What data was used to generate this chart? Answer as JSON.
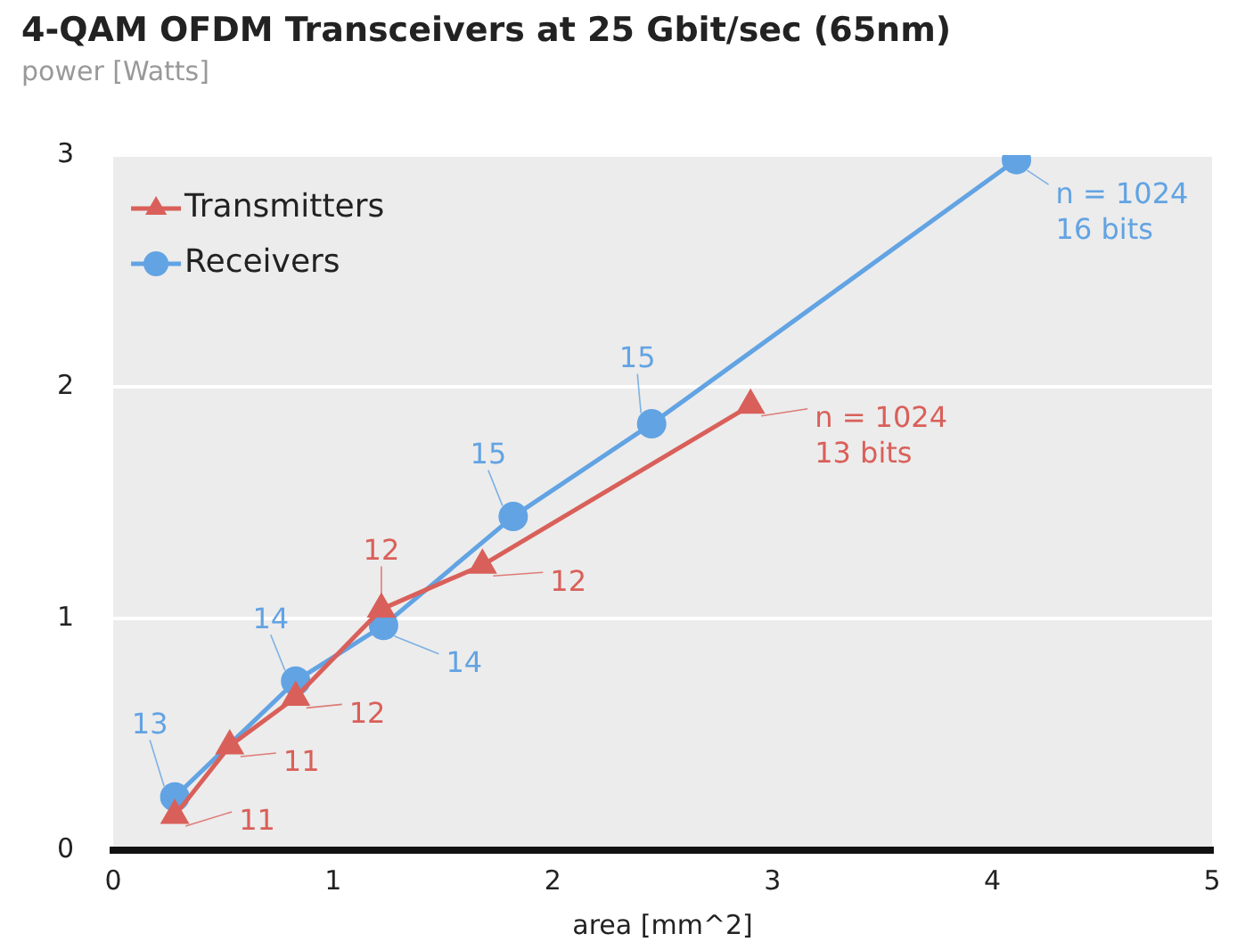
{
  "chart_data": {
    "type": "line",
    "title": "4-QAM OFDM Transceivers at 25 Gbit/sec (65nm)",
    "ylabel": "power [Watts]",
    "xlabel": "area [mm^2]",
    "xlim": [
      0,
      5
    ],
    "xticks": [
      0,
      1,
      2,
      3,
      4,
      5
    ],
    "ylim": [
      0,
      3
    ],
    "yticks": [
      0,
      1,
      2,
      3
    ],
    "grid": "y",
    "legend": "top left",
    "series": [
      {
        "name": "Transmitters",
        "color": "#d9605a",
        "marker": "triangle",
        "x": [
          0.28,
          0.53,
          0.83,
          1.22,
          1.68,
          2.9
        ],
        "values": [
          0.15,
          0.45,
          0.66,
          1.04,
          1.23,
          1.92
        ]
      },
      {
        "name": "Receivers",
        "color": "#62a3e3",
        "marker": "circle",
        "x": [
          0.28,
          0.83,
          1.23,
          1.82,
          2.45,
          4.11
        ],
        "values": [
          0.23,
          0.73,
          0.97,
          1.44,
          1.84,
          2.98
        ]
      }
    ],
    "annotations": [
      {
        "text": "11",
        "x": 0.28,
        "y": 0.15
      },
      {
        "text": "11",
        "x": 0.53,
        "y": 0.45
      },
      {
        "text": "12",
        "x": 0.83,
        "y": 0.66
      },
      {
        "text": "12",
        "x": 1.22,
        "y": 1.04
      },
      {
        "text": "12",
        "x": 1.68,
        "y": 1.23
      },
      {
        "text": "n = 1024\n13 bits",
        "x": 2.9,
        "y": 1.92
      },
      {
        "text": "13",
        "x": 0.28,
        "y": 0.23
      },
      {
        "text": "14",
        "x": 0.83,
        "y": 0.73
      },
      {
        "text": "14",
        "x": 1.23,
        "y": 0.97
      },
      {
        "text": "15",
        "x": 1.82,
        "y": 1.44
      },
      {
        "text": "15",
        "x": 2.45,
        "y": 1.84
      },
      {
        "text": "n = 1024\n16 bits",
        "x": 4.11,
        "y": 2.98
      }
    ]
  }
}
